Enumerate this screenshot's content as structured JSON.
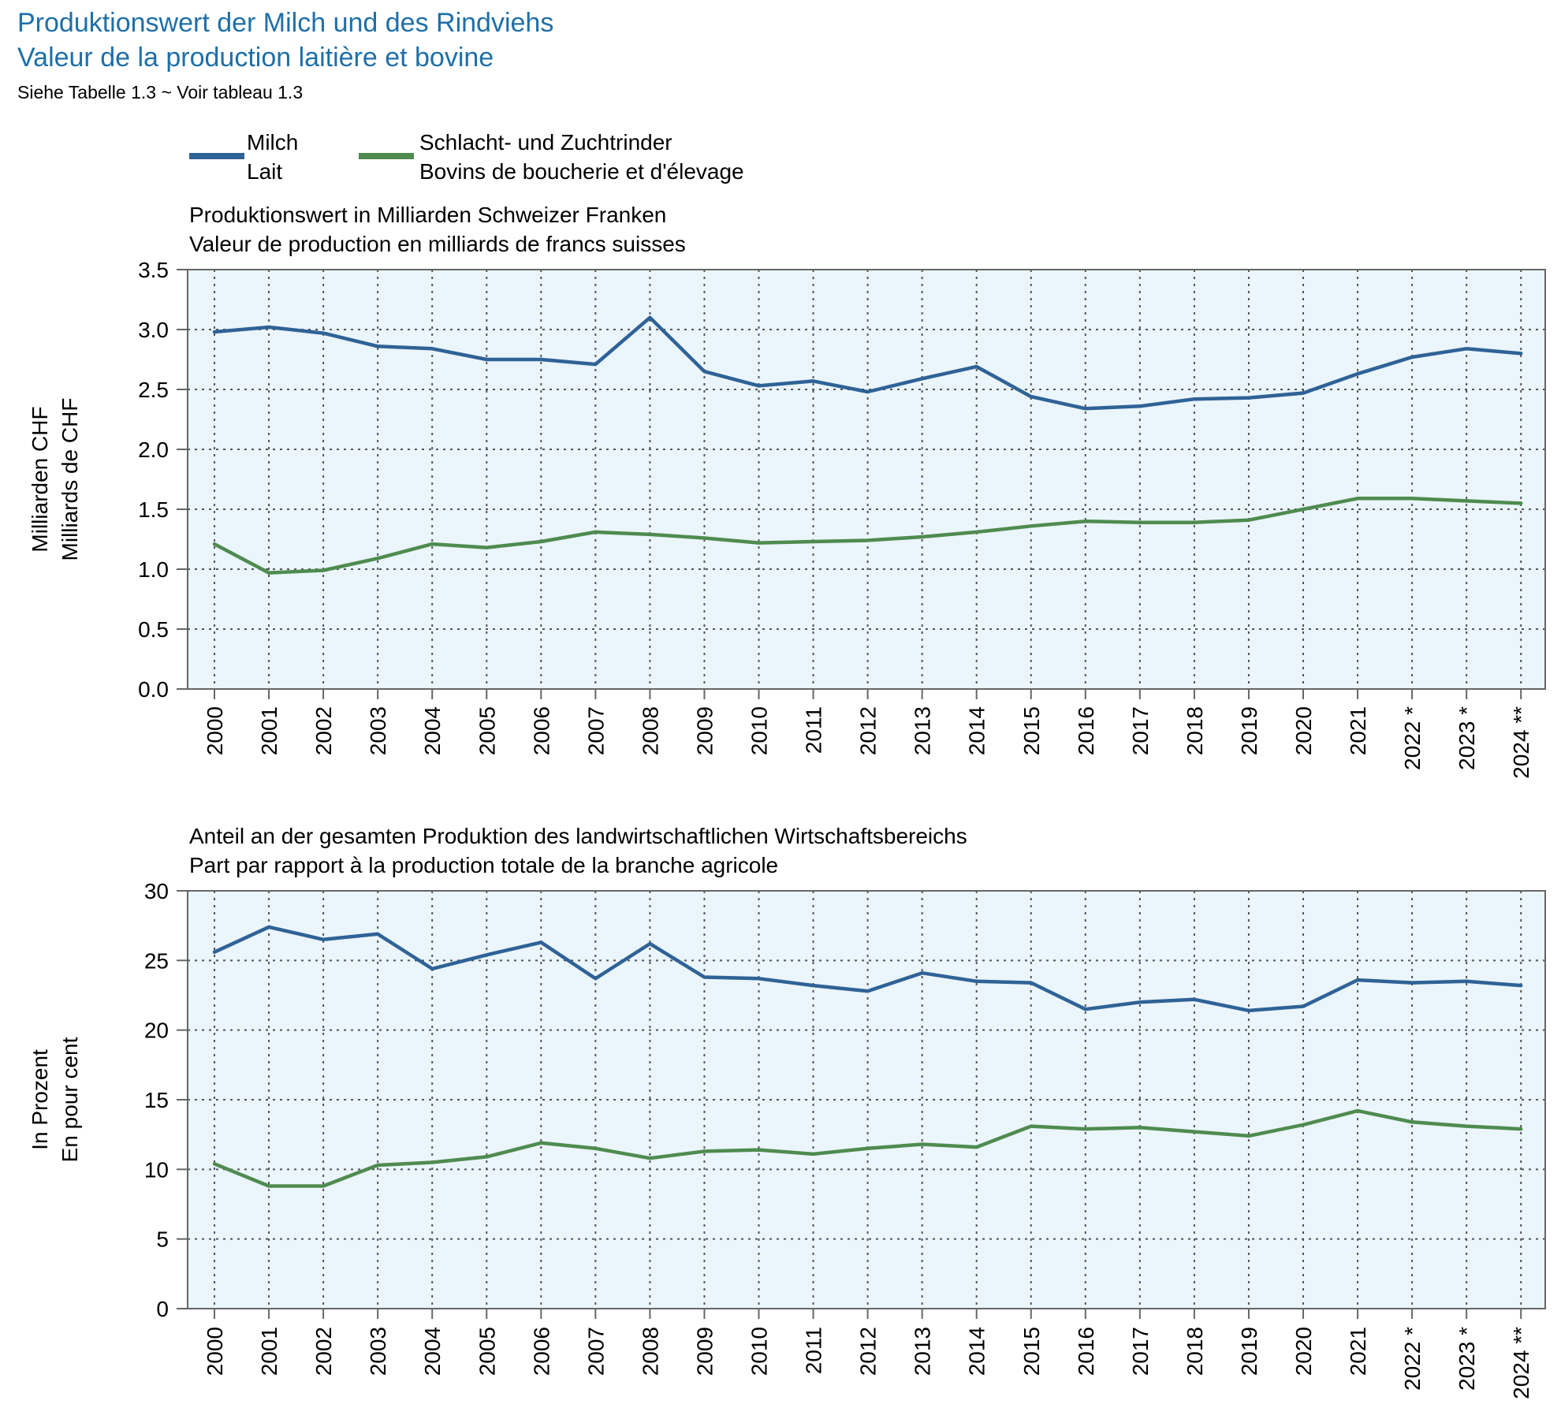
{
  "header": {
    "title_de": "Produktionswert der Milch und des Rindviehs",
    "title_fr": "Valeur de la production laitière et bovine",
    "reference": "Siehe Tabelle 1.3   ~   Voir tableau 1.3"
  },
  "legend": [
    {
      "line1": "Milch",
      "line2": "Lait",
      "color": "#2f6296"
    },
    {
      "line1": "Schlacht- und Zuchtrinder",
      "line2": "Bovins de boucherie et d'élevage",
      "color": "#4f8b4f"
    }
  ],
  "colors": {
    "plot_background": "#eaf5fc",
    "grid": "#555555",
    "axis": "#666666"
  },
  "chart_data": [
    {
      "type": "line",
      "title_lines": [
        "Produktionswert in Milliarden Schweizer Franken",
        "Valeur de production en milliards de francs suisses"
      ],
      "ylabel_lines": [
        "Milliarden CHF",
        "Milliards de CHF"
      ],
      "ylim": [
        0,
        3.5
      ],
      "yticks": [
        "0.0",
        "0.5",
        "1.0",
        "1.5",
        "2.0",
        "2.5",
        "3.0",
        "3.5"
      ],
      "grid": true,
      "categories": [
        "2000",
        "2001",
        "2002",
        "2003",
        "2004",
        "2005",
        "2006",
        "2007",
        "2008",
        "2009",
        "2010",
        "2011",
        "2012",
        "2013",
        "2014",
        "2015",
        "2016",
        "2017",
        "2018",
        "2019",
        "2020",
        "2021",
        "2022",
        "2023",
        "2024"
      ],
      "category_marks": [
        "",
        "",
        "",
        "",
        "",
        "",
        "",
        "",
        "",
        "",
        "",
        "",
        "",
        "",
        "",
        "",
        "",
        "",
        "",
        "",
        "",
        "",
        "*",
        "*",
        "**"
      ],
      "series": [
        {
          "name": "Milch / Lait",
          "color": "#2f6296",
          "values": [
            2.98,
            3.02,
            2.97,
            2.86,
            2.84,
            2.75,
            2.75,
            2.71,
            3.1,
            2.65,
            2.53,
            2.57,
            2.48,
            2.59,
            2.69,
            2.44,
            2.34,
            2.36,
            2.42,
            2.43,
            2.47,
            2.63,
            2.77,
            2.84,
            2.8
          ]
        },
        {
          "name": "Schlacht- und Zuchtrinder / Bovins de boucherie et d'élevage",
          "color": "#4f8b4f",
          "values": [
            1.21,
            0.97,
            0.99,
            1.09,
            1.21,
            1.18,
            1.23,
            1.31,
            1.29,
            1.26,
            1.22,
            1.23,
            1.24,
            1.27,
            1.31,
            1.36,
            1.4,
            1.39,
            1.39,
            1.41,
            1.5,
            1.59,
            1.59,
            1.57,
            1.55
          ]
        }
      ]
    },
    {
      "type": "line",
      "title_lines": [
        "Anteil an der gesamten Produktion des landwirtschaftlichen Wirtschaftsbereichs",
        "Part par rapport à la production totale de la branche agricole"
      ],
      "ylabel_lines": [
        "In Prozent",
        "En pour cent"
      ],
      "ylim": [
        0,
        30
      ],
      "yticks": [
        "0",
        "5",
        "10",
        "15",
        "20",
        "25",
        "30"
      ],
      "grid": true,
      "categories": [
        "2000",
        "2001",
        "2002",
        "2003",
        "2004",
        "2005",
        "2006",
        "2007",
        "2008",
        "2009",
        "2010",
        "2011",
        "2012",
        "2013",
        "2014",
        "2015",
        "2016",
        "2017",
        "2018",
        "2019",
        "2020",
        "2021",
        "2022",
        "2023",
        "2024"
      ],
      "category_marks": [
        "",
        "",
        "",
        "",
        "",
        "",
        "",
        "",
        "",
        "",
        "",
        "",
        "",
        "",
        "",
        "",
        "",
        "",
        "",
        "",
        "",
        "",
        "*",
        "*",
        "**"
      ],
      "series": [
        {
          "name": "Milch / Lait",
          "color": "#2f6296",
          "values": [
            25.6,
            27.4,
            26.5,
            26.9,
            24.4,
            25.4,
            26.3,
            23.7,
            26.2,
            23.8,
            23.7,
            23.2,
            22.8,
            24.1,
            23.5,
            23.4,
            21.5,
            22.0,
            22.2,
            21.4,
            21.7,
            23.6,
            23.4,
            23.5,
            23.2
          ]
        },
        {
          "name": "Schlacht- und Zuchtrinder / Bovins de boucherie et d'élevage",
          "color": "#4f8b4f",
          "values": [
            10.4,
            8.8,
            8.8,
            10.3,
            10.5,
            10.9,
            11.9,
            11.5,
            10.8,
            11.3,
            11.4,
            11.1,
            11.5,
            11.8,
            11.6,
            13.1,
            12.9,
            13.0,
            12.7,
            12.4,
            13.2,
            14.2,
            13.4,
            13.1,
            12.9
          ]
        }
      ]
    }
  ]
}
